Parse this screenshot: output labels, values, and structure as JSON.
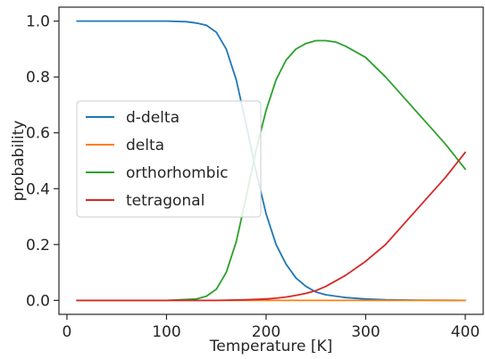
{
  "chart_data": {
    "type": "line",
    "title": "",
    "xlabel": "Temperature [K]",
    "ylabel": "probability",
    "xlim": [
      -8,
      418
    ],
    "ylim": [
      -0.05,
      1.05
    ],
    "x_ticks": [
      {
        "value": 0,
        "label": "0"
      },
      {
        "value": 100,
        "label": "100"
      },
      {
        "value": 200,
        "label": "200"
      },
      {
        "value": 300,
        "label": "300"
      },
      {
        "value": 400,
        "label": "400"
      }
    ],
    "y_ticks": [
      {
        "value": 0.0,
        "label": "0.0"
      },
      {
        "value": 0.2,
        "label": "0.2"
      },
      {
        "value": 0.4,
        "label": "0.4"
      },
      {
        "value": 0.6,
        "label": "0.6"
      },
      {
        "value": 0.8,
        "label": "0.8"
      },
      {
        "value": 1.0,
        "label": "1.0"
      }
    ],
    "grid": false,
    "legend_position": "center-left",
    "series": [
      {
        "name": "d-delta",
        "color": "#1f77b4",
        "x": [
          10,
          50,
          100,
          120,
          130,
          140,
          150,
          160,
          170,
          180,
          190,
          200,
          210,
          220,
          230,
          240,
          250,
          260,
          280,
          300,
          320,
          350,
          400
        ],
        "y": [
          1.0,
          1.0,
          1.0,
          0.998,
          0.993,
          0.985,
          0.96,
          0.9,
          0.79,
          0.63,
          0.46,
          0.31,
          0.2,
          0.13,
          0.08,
          0.05,
          0.03,
          0.02,
          0.01,
          0.005,
          0.002,
          0.001,
          0.0
        ]
      },
      {
        "name": "delta",
        "color": "#ff7f0e",
        "x": [
          10,
          100,
          200,
          300,
          400
        ],
        "y": [
          0.0,
          0.0,
          0.0,
          0.0,
          0.0
        ]
      },
      {
        "name": "orthorhombic",
        "color": "#2ca02c",
        "x": [
          10,
          100,
          130,
          140,
          150,
          160,
          170,
          180,
          190,
          200,
          210,
          220,
          230,
          240,
          250,
          260,
          270,
          280,
          300,
          320,
          340,
          360,
          380,
          400
        ],
        "y": [
          0.0,
          0.0,
          0.005,
          0.015,
          0.04,
          0.1,
          0.21,
          0.37,
          0.54,
          0.68,
          0.79,
          0.86,
          0.9,
          0.92,
          0.93,
          0.93,
          0.925,
          0.91,
          0.87,
          0.8,
          0.72,
          0.64,
          0.56,
          0.47
        ]
      },
      {
        "name": "tetragonal",
        "color": "#d62728",
        "x": [
          10,
          100,
          150,
          180,
          200,
          210,
          220,
          230,
          240,
          250,
          260,
          280,
          300,
          320,
          340,
          360,
          380,
          400
        ],
        "y": [
          0.0,
          0.0,
          0.0,
          0.002,
          0.005,
          0.008,
          0.012,
          0.018,
          0.025,
          0.035,
          0.05,
          0.09,
          0.14,
          0.2,
          0.28,
          0.36,
          0.44,
          0.53
        ]
      }
    ]
  }
}
